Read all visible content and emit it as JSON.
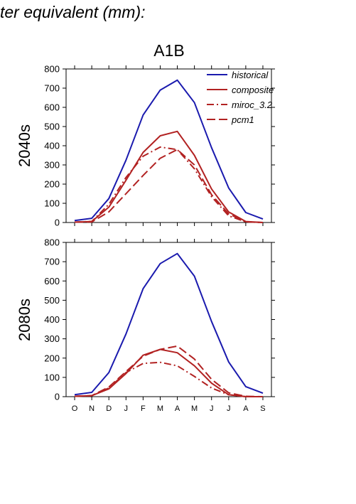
{
  "page_title": "ter equivalent (mm):",
  "scenario_title": "A1B",
  "colors": {
    "historical": "#1a1aae",
    "projection": "#b22222"
  },
  "chart_data": [
    {
      "type": "line",
      "title": "A1B",
      "ylabel": "2040s",
      "xlabel": "",
      "categories": [
        "O",
        "N",
        "D",
        "J",
        "F",
        "M",
        "A",
        "M",
        "J",
        "J",
        "A",
        "S"
      ],
      "ylim": [
        0,
        800
      ],
      "yticks": [
        0,
        100,
        200,
        300,
        400,
        500,
        600,
        700,
        800
      ],
      "legend_position": "top-right",
      "grid": false,
      "series": [
        {
          "name": "historical",
          "style": "solid",
          "color": "#1a1aae",
          "values": [
            10,
            22,
            125,
            325,
            560,
            690,
            742,
            625,
            390,
            180,
            52,
            18
          ]
        },
        {
          "name": "composite",
          "style": "solid",
          "color": "#b22222",
          "values": [
            2,
            5,
            80,
            220,
            365,
            452,
            475,
            350,
            175,
            55,
            5,
            0
          ]
        },
        {
          "name": "miroc_3.2",
          "style": "dashdot",
          "color": "#b22222",
          "values": [
            2,
            5,
            95,
            235,
            345,
            393,
            380,
            280,
            135,
            35,
            3,
            0
          ]
        },
        {
          "name": "pcm1",
          "style": "dashed",
          "color": "#b22222",
          "values": [
            2,
            3,
            55,
            150,
            245,
            335,
            380,
            300,
            145,
            45,
            4,
            0
          ]
        }
      ]
    },
    {
      "type": "line",
      "title": "",
      "ylabel": "2080s",
      "xlabel": "",
      "categories": [
        "O",
        "N",
        "D",
        "J",
        "F",
        "M",
        "A",
        "M",
        "J",
        "J",
        "A",
        "S"
      ],
      "ylim": [
        0,
        800
      ],
      "yticks": [
        0,
        100,
        200,
        300,
        400,
        500,
        600,
        700,
        800
      ],
      "grid": false,
      "series": [
        {
          "name": "historical",
          "style": "solid",
          "color": "#1a1aae",
          "values": [
            10,
            22,
            125,
            325,
            560,
            690,
            742,
            625,
            390,
            180,
            52,
            18
          ]
        },
        {
          "name": "composite",
          "style": "solid",
          "color": "#b22222",
          "values": [
            2,
            5,
            40,
            120,
            215,
            245,
            228,
            160,
            70,
            10,
            0,
            0
          ]
        },
        {
          "name": "miroc_3.2",
          "style": "dashdot",
          "color": "#b22222",
          "values": [
            2,
            5,
            45,
            125,
            172,
            178,
            160,
            105,
            45,
            10,
            0,
            0
          ]
        },
        {
          "name": "pcm1",
          "style": "dashed",
          "color": "#b22222",
          "values": [
            2,
            5,
            50,
            130,
            210,
            245,
            262,
            195,
            90,
            20,
            2,
            0
          ]
        }
      ]
    }
  ]
}
